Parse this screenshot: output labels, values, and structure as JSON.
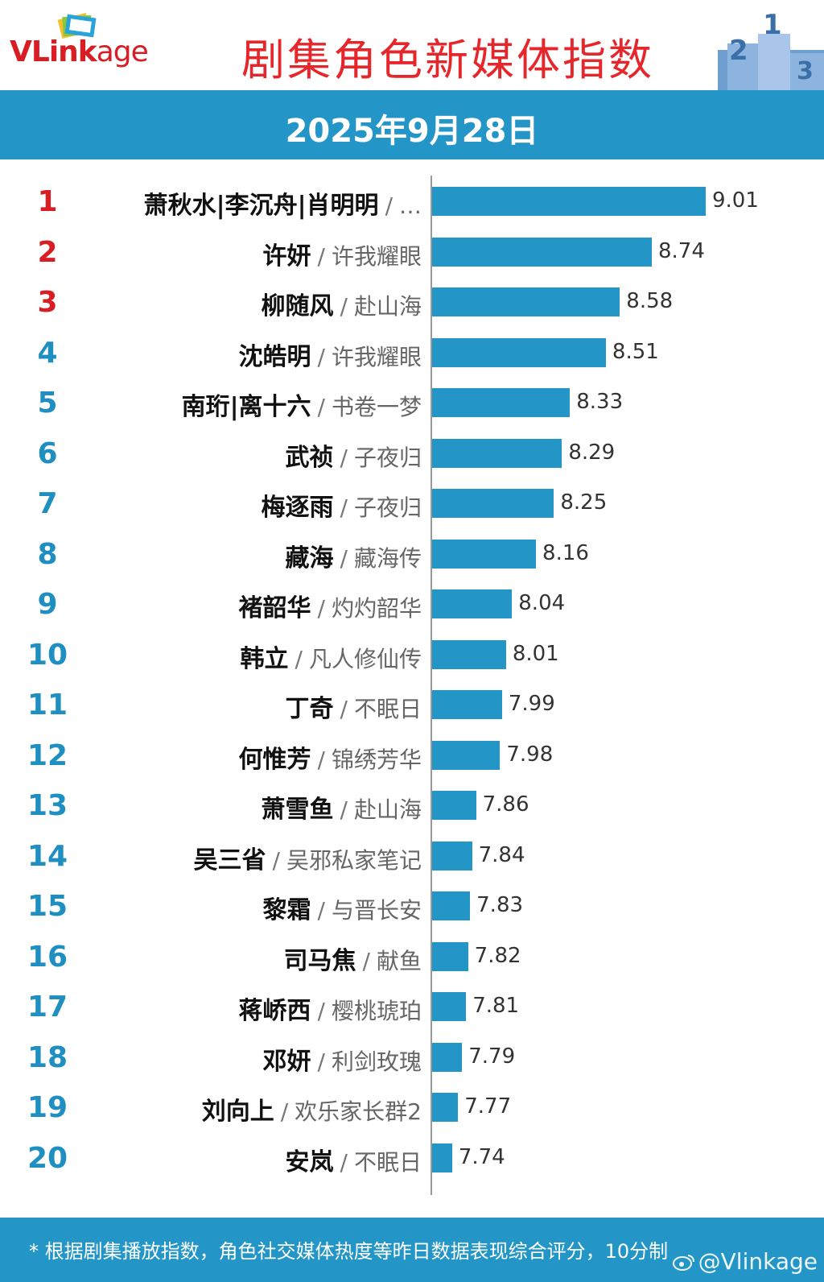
{
  "header": {
    "logo_text_v": "V",
    "logo_text_link": "Link",
    "logo_text_age": "age",
    "title": "剧集角色新媒体指数",
    "podium_labels": [
      "2",
      "1",
      "3"
    ]
  },
  "date": "2025年9月28日",
  "colors": {
    "bar": "#2396c7",
    "top_rank": "#d81d24",
    "rank": "#1f8fc2",
    "title": "#e5262b"
  },
  "chart_data": {
    "type": "bar",
    "orientation": "horizontal",
    "categories": [
      {
        "rank": "1",
        "character": "萧秋水|李沉舟|肖明明",
        "drama": "…"
      },
      {
        "rank": "2",
        "character": "许妍",
        "drama": "许我耀眼"
      },
      {
        "rank": "3",
        "character": "柳随风",
        "drama": "赴山海"
      },
      {
        "rank": "4",
        "character": "沈皓明",
        "drama": "许我耀眼"
      },
      {
        "rank": "5",
        "character": "南珩|离十六",
        "drama": "书卷一梦"
      },
      {
        "rank": "6",
        "character": "武祯",
        "drama": "子夜归"
      },
      {
        "rank": "7",
        "character": "梅逐雨",
        "drama": "子夜归"
      },
      {
        "rank": "8",
        "character": "藏海",
        "drama": "藏海传"
      },
      {
        "rank": "9",
        "character": "褚韶华",
        "drama": "灼灼韶华"
      },
      {
        "rank": "10",
        "character": "韩立",
        "drama": "凡人修仙传"
      },
      {
        "rank": "11",
        "character": "丁奇",
        "drama": "不眠日"
      },
      {
        "rank": "12",
        "character": "何惟芳",
        "drama": "锦绣芳华"
      },
      {
        "rank": "13",
        "character": "萧雪鱼",
        "drama": "赴山海"
      },
      {
        "rank": "14",
        "character": "吴三省",
        "drama": "吴邪私家笔记"
      },
      {
        "rank": "15",
        "character": "黎霜",
        "drama": "与晋长安"
      },
      {
        "rank": "16",
        "character": "司马焦",
        "drama": "献鱼"
      },
      {
        "rank": "17",
        "character": "蒋峤西",
        "drama": "樱桃琥珀"
      },
      {
        "rank": "18",
        "character": "邓妍",
        "drama": "利剑玫瑰"
      },
      {
        "rank": "19",
        "character": "刘向上",
        "drama": "欢乐家长群2"
      },
      {
        "rank": "20",
        "character": "安岚",
        "drama": "不眠日"
      }
    ],
    "values": [
      9.01,
      8.74,
      8.58,
      8.51,
      8.33,
      8.29,
      8.25,
      8.16,
      8.04,
      8.01,
      7.99,
      7.98,
      7.86,
      7.84,
      7.83,
      7.82,
      7.81,
      7.79,
      7.77,
      7.74
    ],
    "value_labels": [
      "9.01",
      "8.74",
      "8.58",
      "8.51",
      "8.33",
      "8.29",
      "8.25",
      "8.16",
      "8.04",
      "8.01",
      "7.99",
      "7.98",
      "7.86",
      "7.84",
      "7.83",
      "7.82",
      "7.81",
      "7.79",
      "7.77",
      "7.74"
    ],
    "separator": "/",
    "xlim": [
      7.64,
      9.01
    ]
  },
  "footer": {
    "note": "* 根据剧集播放指数，角色社交媒体热度等昨日数据表现综合评分，10分制",
    "watermark": "@Vlinkage"
  }
}
